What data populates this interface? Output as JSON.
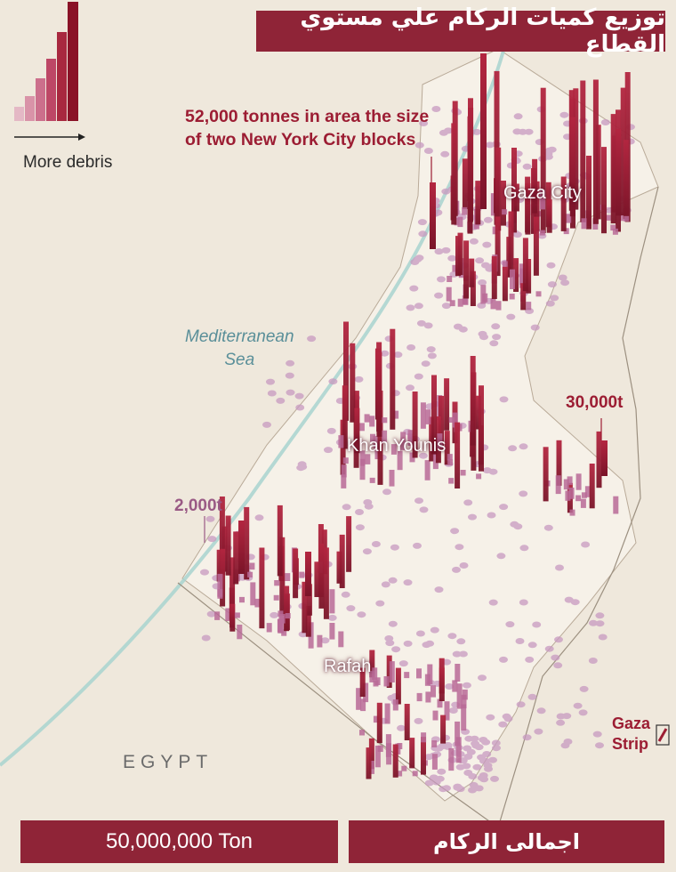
{
  "title": "توزيع كميات الركام علي مستوي القطاع",
  "legend": {
    "label": "More debris"
  },
  "annotations": {
    "large_block_line1": "52,000 tonnes in area the size",
    "large_block_line2": "of two New York City blocks",
    "value_30k": "30,000t",
    "value_2k": "2,000t"
  },
  "places": {
    "gaza_city": "Gaza City",
    "khan_younis": "Khan Younis",
    "rafah": "Rafah",
    "sea_line1": "Mediterranean",
    "sea_line2": "Sea",
    "egypt": "EGYPT",
    "gaza_strip_line1": "Gaza",
    "gaza_strip_line2": "Strip"
  },
  "totals": {
    "value": "50,000,000 Ton",
    "label": "اجمالى الركام"
  },
  "colors": {
    "background": "#efe8dc",
    "bar_accent": "#8f2437",
    "heavy_debris": "#9c1d33",
    "light_debris": "#c89ac0"
  }
}
